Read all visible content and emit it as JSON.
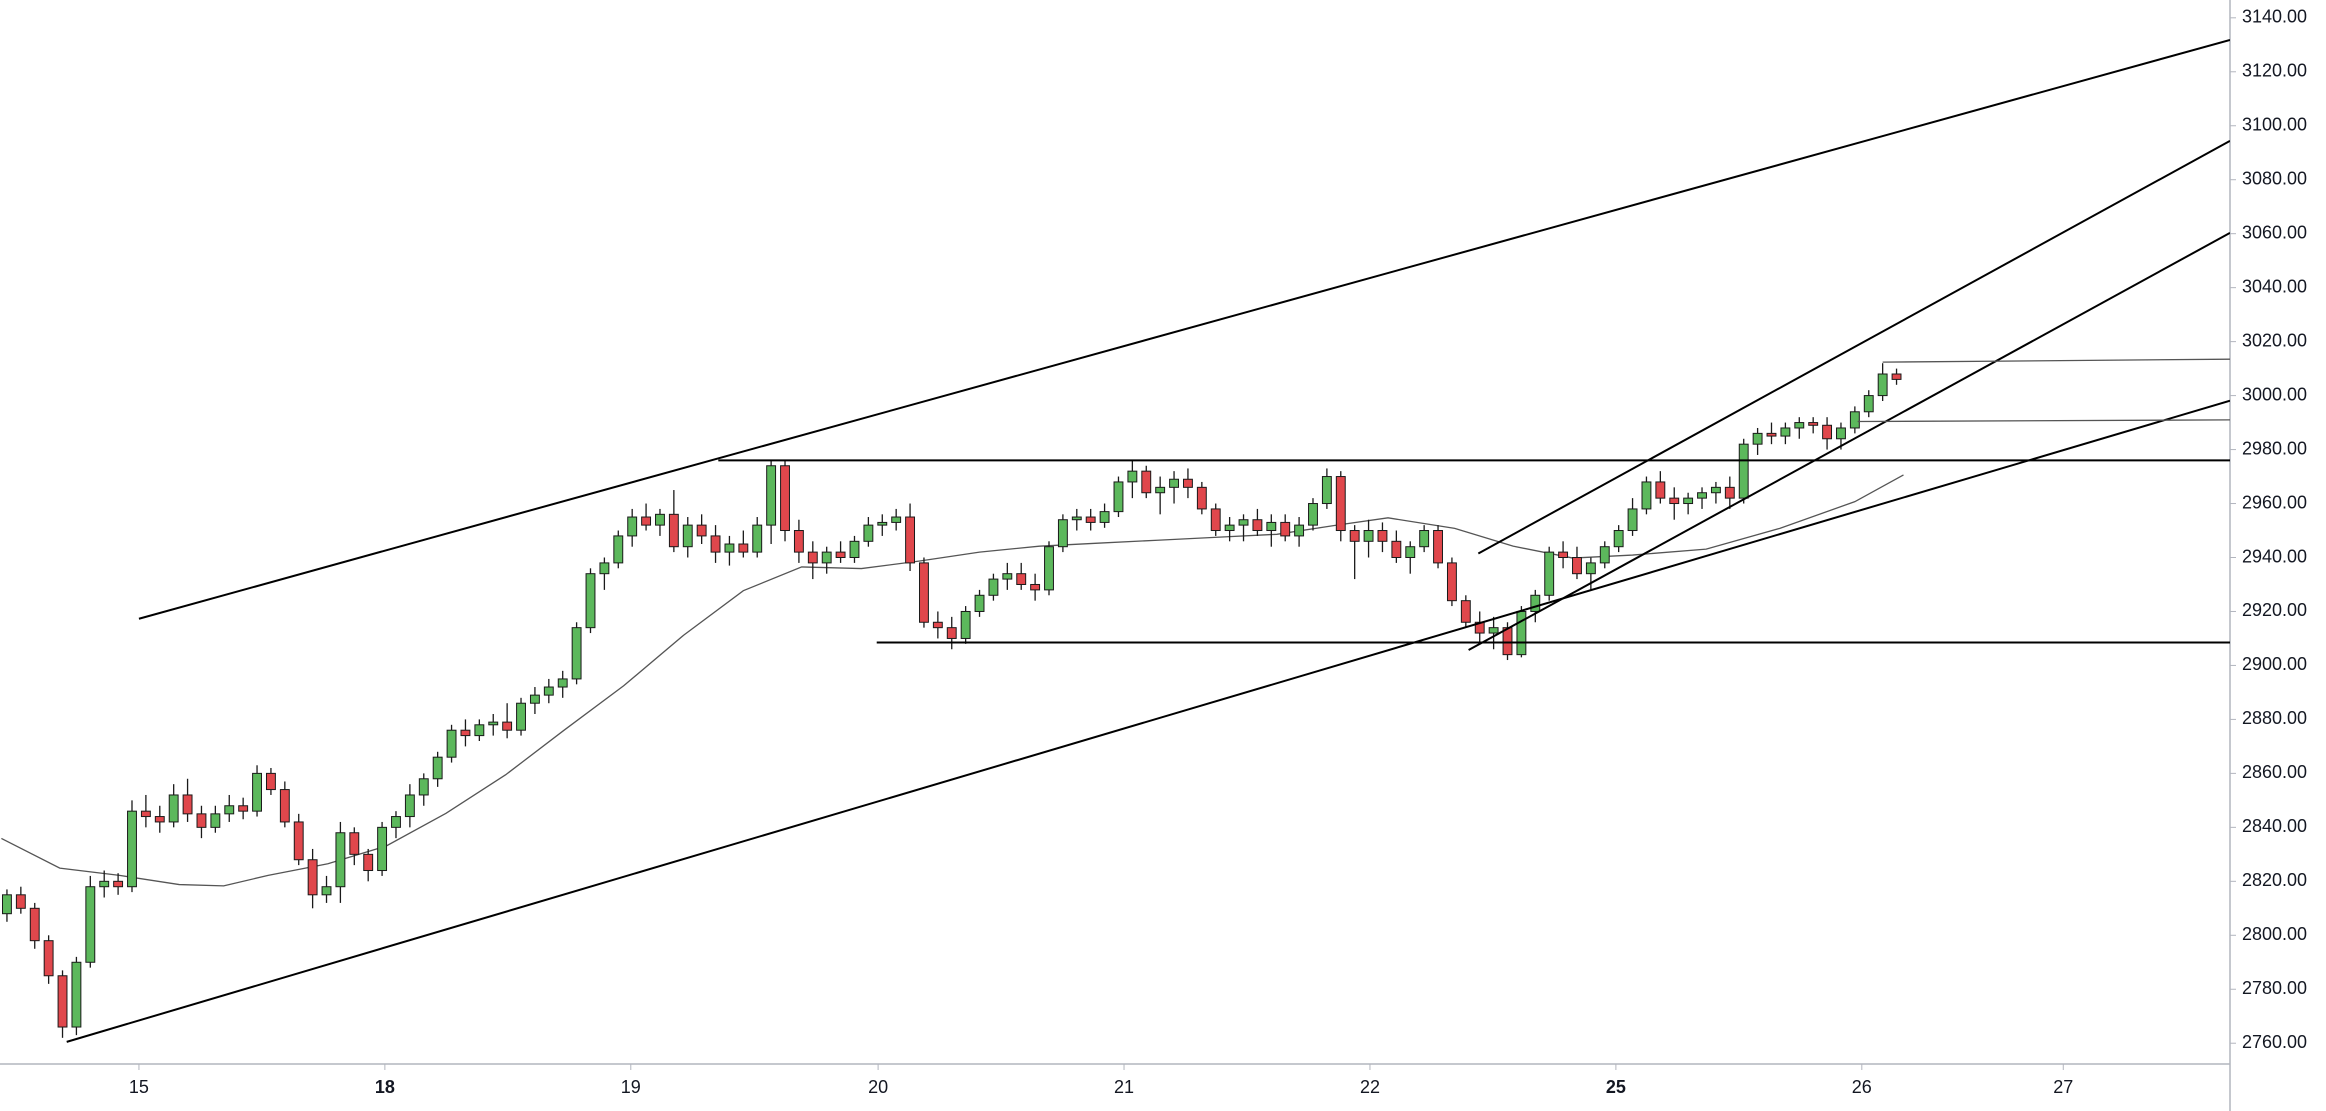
{
  "chart_data": {
    "type": "candlestick",
    "up_color": "#5cb85c",
    "down_color": "#e0474c",
    "outline_color": "#1a1a1a",
    "open": [
      2808,
      2815,
      2810,
      2798,
      2785,
      2766,
      2790,
      2818,
      2820,
      2818,
      2846,
      2844,
      2842,
      2852,
      2845,
      2840,
      2845,
      2848,
      2846,
      2860,
      2854,
      2842,
      2828,
      2815,
      2818,
      2838,
      2830,
      2824,
      2840,
      2844,
      2852,
      2858,
      2866,
      2876,
      2874,
      2878,
      2879,
      2876,
      2886,
      2889,
      2892,
      2895,
      2914,
      2934,
      2938,
      2948,
      2955,
      2952,
      2956,
      2944,
      2952,
      2948,
      2942,
      2945,
      2942,
      2952,
      2974,
      2950,
      2942,
      2938,
      2942,
      2940,
      2946,
      2952,
      2953,
      2955,
      2938,
      2916,
      2914,
      2910,
      2920,
      2926,
      2932,
      2934,
      2930,
      2928,
      2944,
      2954,
      2955,
      2953,
      2957,
      2968,
      2972,
      2964,
      2966,
      2969,
      2966,
      2958,
      2950,
      2952,
      2954,
      2950,
      2953,
      2948,
      2952,
      2960,
      2970,
      2950,
      2946,
      2950,
      2946,
      2940,
      2944,
      2950,
      2938,
      2924,
      2916,
      2912,
      2914,
      2904,
      2920,
      2926,
      2942,
      2940,
      2934,
      2938,
      2944,
      2950,
      2958,
      2968,
      2962,
      2960,
      2962,
      2964,
      2966,
      2962,
      2982,
      2986,
      2985,
      2988,
      2990,
      2989,
      2984,
      2988,
      2994,
      3000,
      3008
    ],
    "high": [
      2817,
      2818,
      2812,
      2800,
      2787,
      2792,
      2822,
      2824,
      2823,
      2850,
      2852,
      2848,
      2856,
      2858,
      2848,
      2848,
      2852,
      2851,
      2863,
      2862,
      2857,
      2845,
      2832,
      2822,
      2842,
      2840,
      2832,
      2842,
      2846,
      2856,
      2860,
      2868,
      2878,
      2880,
      2880,
      2882,
      2886,
      2888,
      2892,
      2895,
      2898,
      2916,
      2936,
      2940,
      2950,
      2958,
      2960,
      2958,
      2965,
      2955,
      2956,
      2952,
      2948,
      2950,
      2955,
      2976,
      2976,
      2954,
      2946,
      2944,
      2946,
      2948,
      2955,
      2956,
      2958,
      2960,
      2940,
      2920,
      2918,
      2922,
      2928,
      2934,
      2938,
      2938,
      2934,
      2946,
      2956,
      2958,
      2958,
      2960,
      2970,
      2976,
      2974,
      2970,
      2972,
      2973,
      2968,
      2960,
      2955,
      2956,
      2958,
      2956,
      2956,
      2955,
      2962,
      2973,
      2972,
      2952,
      2954,
      2953,
      2950,
      2946,
      2952,
      2952,
      2940,
      2926,
      2920,
      2918,
      2916,
      2922,
      2928,
      2944,
      2946,
      2944,
      2940,
      2946,
      2952,
      2962,
      2970,
      2972,
      2966,
      2964,
      2966,
      2968,
      2970,
      2984,
      2988,
      2990,
      2990,
      2992,
      2992,
      2992,
      2990,
      2996,
      3002,
      3012,
      3010
    ],
    "low": [
      2805,
      2808,
      2795,
      2782,
      2762,
      2763,
      2788,
      2814,
      2815,
      2816,
      2840,
      2838,
      2840,
      2842,
      2836,
      2838,
      2842,
      2843,
      2844,
      2852,
      2840,
      2826,
      2810,
      2812,
      2812,
      2826,
      2820,
      2822,
      2836,
      2840,
      2848,
      2855,
      2864,
      2870,
      2872,
      2874,
      2873,
      2874,
      2882,
      2886,
      2888,
      2893,
      2912,
      2928,
      2936,
      2944,
      2950,
      2948,
      2942,
      2940,
      2945,
      2938,
      2937,
      2940,
      2940,
      2945,
      2946,
      2938,
      2932,
      2934,
      2938,
      2938,
      2944,
      2948,
      2950,
      2935,
      2914,
      2910,
      2906,
      2908,
      2918,
      2924,
      2928,
      2928,
      2924,
      2926,
      2942,
      2950,
      2950,
      2951,
      2955,
      2962,
      2962,
      2956,
      2960,
      2962,
      2956,
      2948,
      2946,
      2946,
      2948,
      2944,
      2946,
      2944,
      2950,
      2958,
      2946,
      2932,
      2940,
      2942,
      2938,
      2934,
      2942,
      2936,
      2922,
      2914,
      2908,
      2906,
      2902,
      2903,
      2916,
      2924,
      2936,
      2932,
      2928,
      2936,
      2942,
      2948,
      2956,
      2960,
      2954,
      2956,
      2958,
      2960,
      2958,
      2960,
      2978,
      2982,
      2982,
      2984,
      2986,
      2980,
      2980,
      2986,
      2992,
      2998,
      3004
    ],
    "close": [
      2815,
      2810,
      2798,
      2785,
      2766,
      2790,
      2818,
      2820,
      2818,
      2846,
      2844,
      2842,
      2852,
      2845,
      2840,
      2845,
      2848,
      2846,
      2860,
      2854,
      2842,
      2828,
      2815,
      2818,
      2838,
      2830,
      2824,
      2840,
      2844,
      2852,
      2858,
      2866,
      2876,
      2874,
      2878,
      2879,
      2876,
      2886,
      2889,
      2892,
      2895,
      2914,
      2934,
      2938,
      2948,
      2955,
      2952,
      2956,
      2944,
      2952,
      2948,
      2942,
      2945,
      2942,
      2952,
      2974,
      2950,
      2942,
      2938,
      2942,
      2940,
      2946,
      2952,
      2953,
      2955,
      2938,
      2916,
      2914,
      2910,
      2920,
      2926,
      2932,
      2934,
      2930,
      2928,
      2944,
      2954,
      2955,
      2953,
      2957,
      2968,
      2972,
      2964,
      2966,
      2969,
      2966,
      2958,
      2950,
      2952,
      2954,
      2950,
      2953,
      2948,
      2952,
      2960,
      2970,
      2950,
      2946,
      2950,
      2946,
      2940,
      2944,
      2950,
      2938,
      2924,
      2916,
      2912,
      2914,
      2904,
      2920,
      2926,
      2942,
      2940,
      2934,
      2938,
      2944,
      2950,
      2958,
      2968,
      2962,
      2960,
      2962,
      2964,
      2966,
      2962,
      2982,
      2986,
      2985,
      2988,
      2990,
      2989,
      2984,
      2988,
      2994,
      3000,
      3008,
      3006
    ],
    "moving_average": {
      "color": "#555555",
      "x": [
        -0.4,
        3.8,
        8.1,
        12.4,
        15.6,
        18.8,
        23.1,
        27.3,
        31.6,
        35.9,
        40.1,
        44.4,
        48.7,
        53,
        57.2,
        61.5,
        65.7,
        70,
        74.3,
        78.5,
        82.8,
        87.1,
        91.4,
        95.6,
        99.4,
        104.2,
        108.4,
        112.7,
        117,
        122.3,
        127.6,
        133,
        136.5
      ],
      "values": [
        2835.9,
        2824.9,
        2822.2,
        2818.8,
        2818.3,
        2822.2,
        2826.5,
        2833.1,
        2845.2,
        2859.5,
        2876,
        2892.5,
        2911.2,
        2927.7,
        2936.5,
        2935.9,
        2938.7,
        2942,
        2944.2,
        2945.3,
        2946.4,
        2947.5,
        2948.6,
        2951.9,
        2954.7,
        2950.8,
        2944.2,
        2939.8,
        2940.9,
        2943.1,
        2950.8,
        2960.7,
        2970.6
      ]
    },
    "lines": [
      {
        "x": [
          9.5,
          160
        ],
        "y": [
          2917.3,
          3131.8
        ],
        "color": "#000000",
        "width": 2
      },
      {
        "x": [
          4.3,
          160
        ],
        "y": [
          2760.5,
          2998.1
        ],
        "color": "#000000",
        "width": 2
      },
      {
        "x": [
          51.2,
          160
        ],
        "y": [
          2976,
          2976
        ],
        "color": "#000000",
        "width": 2
      },
      {
        "x": [
          62.6,
          160
        ],
        "y": [
          2908.5,
          2908.5
        ],
        "color": "#000000",
        "width": 2
      },
      {
        "x": [
          105.9,
          160
        ],
        "y": [
          2941.5,
          3094.4
        ],
        "color": "#000000",
        "width": 2
      },
      {
        "x": [
          105.2,
          160
        ],
        "y": [
          2905.7,
          3060.3
        ],
        "color": "#000000",
        "width": 2
      },
      {
        "x": [
          135,
          160
        ],
        "y": [
          3012.4,
          3013.5
        ],
        "color": "#555555",
        "width": 1.3
      },
      {
        "x": [
          133.2,
          160
        ],
        "y": [
          2990.4,
          2991
        ],
        "color": "#555555",
        "width": 1.3
      }
    ],
    "xlim": [
      -0.5,
      160
    ],
    "ylim": [
      2752.3,
      3146.6
    ],
    "xticks": [
      {
        "value": 9.5,
        "label": "15"
      },
      {
        "value": 27.2,
        "label": "18",
        "bold": true
      },
      {
        "value": 44.9,
        "label": "19"
      },
      {
        "value": 62.7,
        "label": "20"
      },
      {
        "value": 80.4,
        "label": "21"
      },
      {
        "value": 98.1,
        "label": "22"
      },
      {
        "value": 115.8,
        "label": "25",
        "bold": true
      },
      {
        "value": 133.5,
        "label": "26"
      },
      {
        "value": 148,
        "label": "27"
      }
    ],
    "yticks": [
      {
        "value": 2760,
        "label": "2760.00"
      },
      {
        "value": 2780,
        "label": "2780.00"
      },
      {
        "value": 2800,
        "label": "2800.00"
      },
      {
        "value": 2820,
        "label": "2820.00"
      },
      {
        "value": 2840,
        "label": "2840.00"
      },
      {
        "value": 2860,
        "label": "2860.00"
      },
      {
        "value": 2880,
        "label": "2880.00"
      },
      {
        "value": 2900,
        "label": "2900.00"
      },
      {
        "value": 2920,
        "label": "2920.00"
      },
      {
        "value": 2940,
        "label": "2940.00"
      },
      {
        "value": 2960,
        "label": "2960.00"
      },
      {
        "value": 2980,
        "label": "2980.00"
      },
      {
        "value": 3000,
        "label": "3000.00"
      },
      {
        "value": 3020,
        "label": "3020.00"
      },
      {
        "value": 3040,
        "label": "3040.00"
      },
      {
        "value": 3060,
        "label": "3060.00"
      },
      {
        "value": 3080,
        "label": "3080.00"
      },
      {
        "value": 3100,
        "label": "3100.00"
      },
      {
        "value": 3120,
        "label": "3120.00"
      },
      {
        "value": 3140,
        "label": "3140.00"
      }
    ]
  }
}
